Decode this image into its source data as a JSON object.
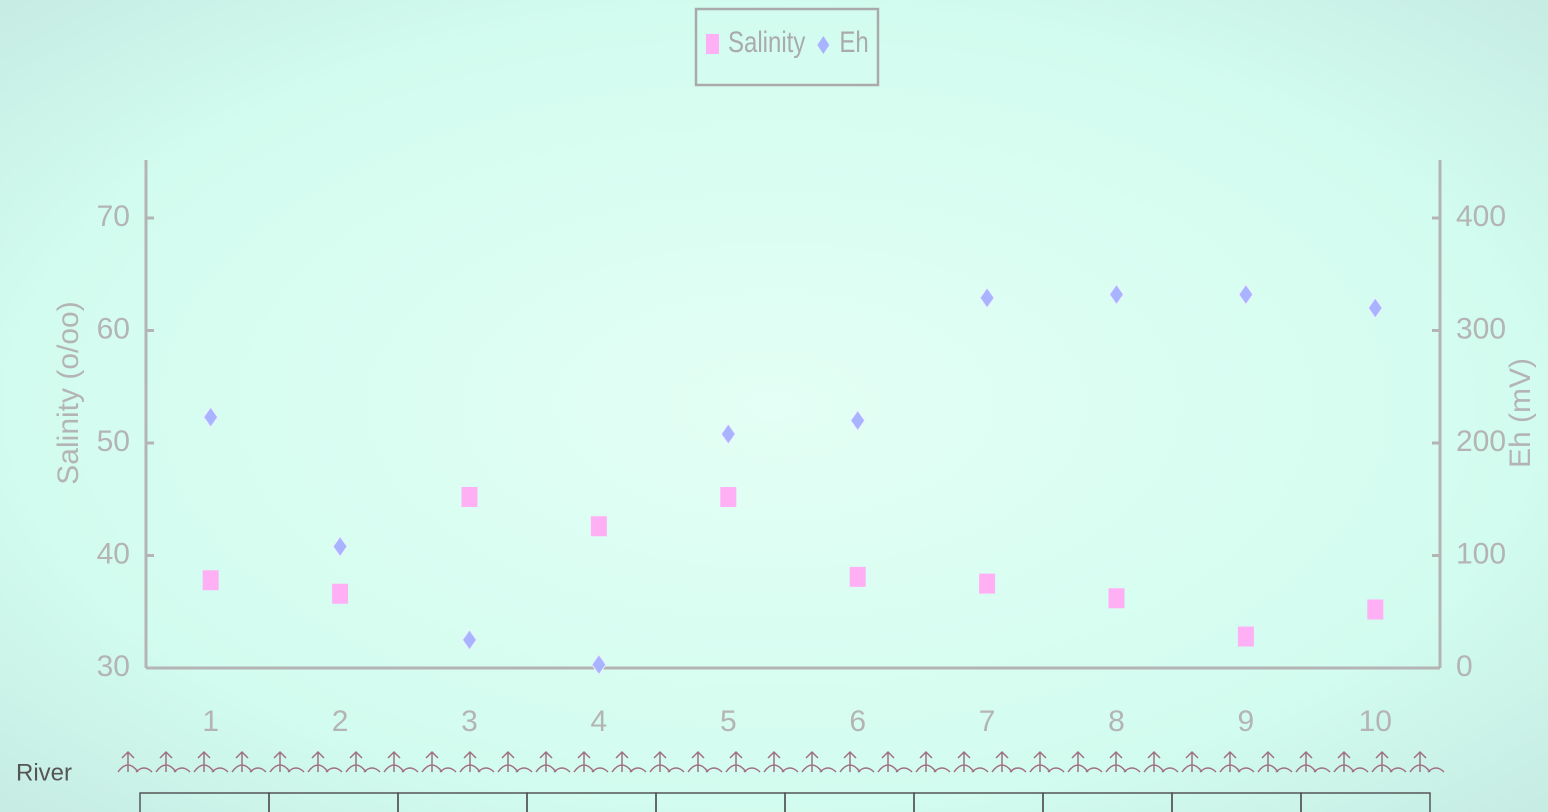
{
  "chart_data": {
    "type": "scatter",
    "categories": [
      "1",
      "2",
      "3",
      "4",
      "5",
      "6",
      "7",
      "8",
      "9",
      "10"
    ],
    "series": [
      {
        "name": "Salinity",
        "color": "#ffb0f4",
        "marker": "square",
        "axis": "y",
        "values": [
          37.8,
          36.6,
          45.2,
          42.6,
          45.2,
          38.1,
          37.5,
          36.2,
          32.8,
          35.2
        ]
      },
      {
        "name": "Eh",
        "color": "#a8b4ff",
        "marker": "diamond",
        "axis": "y2",
        "values": [
          223,
          108,
          25,
          3,
          208,
          220,
          329,
          332,
          332,
          320
        ]
      }
    ],
    "ylabel": "Salinity (o/oo)",
    "y2label": "Eh (mV)",
    "ylim": [
      30,
      70
    ],
    "yticks": [
      30,
      40,
      50,
      60,
      70
    ],
    "y2lim": [
      0,
      400
    ],
    "y2ticks": [
      0,
      100,
      200,
      300,
      400
    ],
    "legend": "top",
    "annotation": "River"
  }
}
